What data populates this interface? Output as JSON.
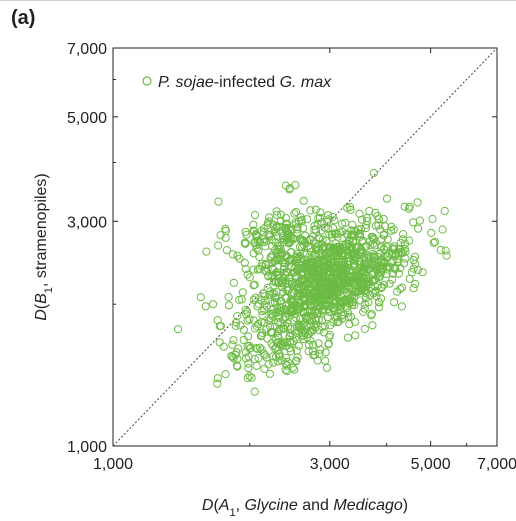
{
  "panel_label": "(a)",
  "colors": {
    "marker": "#6dbb45",
    "axis": "#222222",
    "diagonal": "#444444"
  },
  "chart_data": {
    "type": "scatter",
    "title": "",
    "xlabel_parts": [
      {
        "t": "D",
        "italic": true
      },
      {
        "t": "(",
        "italic": false
      },
      {
        "t": "A",
        "italic": true
      },
      {
        "t": "1",
        "italic": false,
        "sub": true
      },
      {
        "t": ", ",
        "italic": false
      },
      {
        "t": "Glycine",
        "italic": true
      },
      {
        "t": " and ",
        "italic": false
      },
      {
        "t": "Medicago",
        "italic": true
      },
      {
        "t": ")",
        "italic": false
      }
    ],
    "ylabel_parts": [
      {
        "t": "D",
        "italic": true
      },
      {
        "t": "(",
        "italic": false
      },
      {
        "t": "B",
        "italic": true
      },
      {
        "t": "1",
        "italic": false,
        "sub": true
      },
      {
        "t": ", stramenopiles)",
        "italic": false
      }
    ],
    "x_scale": "log",
    "y_scale": "log",
    "xlim": [
      1000,
      7000
    ],
    "ylim": [
      1000,
      7000
    ],
    "x_ticks": [
      1000,
      3000,
      5000,
      7000
    ],
    "x_tick_labels": [
      "1,000",
      "3,000",
      "5,000",
      "7,000"
    ],
    "y_ticks": [
      1000,
      3000,
      5000,
      7000
    ],
    "y_tick_labels": [
      "1,000",
      "3,000",
      "5,000",
      "7,000"
    ],
    "grid": false,
    "diagonal_line": "y = x, dotted",
    "legend": {
      "placement": "top-left",
      "entries": [
        [
          {
            "t": "P. sojae",
            "italic": true
          },
          {
            "t": "-infected ",
            "italic": false
          },
          {
            "t": "G. max",
            "italic": true
          }
        ]
      ]
    },
    "clusters": [
      {
        "center": [
          2450,
          2700
        ],
        "spread": [
          0.065,
          0.045
        ],
        "count": 230,
        "corr": 0
      },
      {
        "center": [
          3050,
          2250
        ],
        "spread": [
          0.085,
          0.06
        ],
        "count": 950,
        "corr": 0.55
      },
      {
        "center": [
          2350,
          1650
        ],
        "spread": [
          0.07,
          0.04
        ],
        "count": 110,
        "corr": 0.3
      }
    ],
    "points": [
      [
        1390,
        1770
      ],
      [
        1600,
        1980
      ],
      [
        1560,
        2070
      ],
      [
        1700,
        1850
      ],
      [
        1660,
        2000
      ],
      [
        1870,
        1580
      ],
      [
        1960,
        1580
      ],
      [
        1830,
        1640
      ],
      [
        2050,
        1530
      ],
      [
        2000,
        1610
      ],
      [
        1800,
        1990
      ],
      [
        1930,
        2120
      ],
      [
        2000,
        2280
      ],
      [
        1950,
        2450
      ],
      [
        2100,
        2380
      ],
      [
        2200,
        1490
      ],
      [
        2350,
        1520
      ],
      [
        2250,
        1550
      ],
      [
        2150,
        1570
      ],
      [
        2700,
        1640
      ],
      [
        2600,
        1710
      ],
      [
        2780,
        1560
      ],
      [
        2400,
        3050
      ],
      [
        2600,
        3000
      ],
      [
        2550,
        2350
      ],
      [
        3300,
        2050
      ],
      [
        3650,
        2020
      ],
      [
        3800,
        2380
      ],
      [
        3750,
        2520
      ],
      [
        3950,
        2200
      ],
      [
        4100,
        2450
      ],
      [
        3500,
        2780
      ],
      [
        3600,
        2900
      ],
      [
        4300,
        2700
      ],
      [
        4400,
        2500
      ],
      [
        4150,
        2880
      ],
      [
        4000,
        2650
      ],
      [
        3860,
        2560
      ],
      [
        3750,
        3800
      ],
      [
        4480,
        3190
      ],
      [
        4680,
        3290
      ],
      [
        2520,
        3580
      ],
      [
        3900,
        2750
      ],
      [
        3400,
        2550
      ],
      [
        3200,
        2850
      ],
      [
        2250,
        2950
      ],
      [
        2150,
        2900
      ],
      [
        1950,
        2700
      ],
      [
        2050,
        2200
      ],
      [
        2650,
        2250
      ]
    ]
  }
}
